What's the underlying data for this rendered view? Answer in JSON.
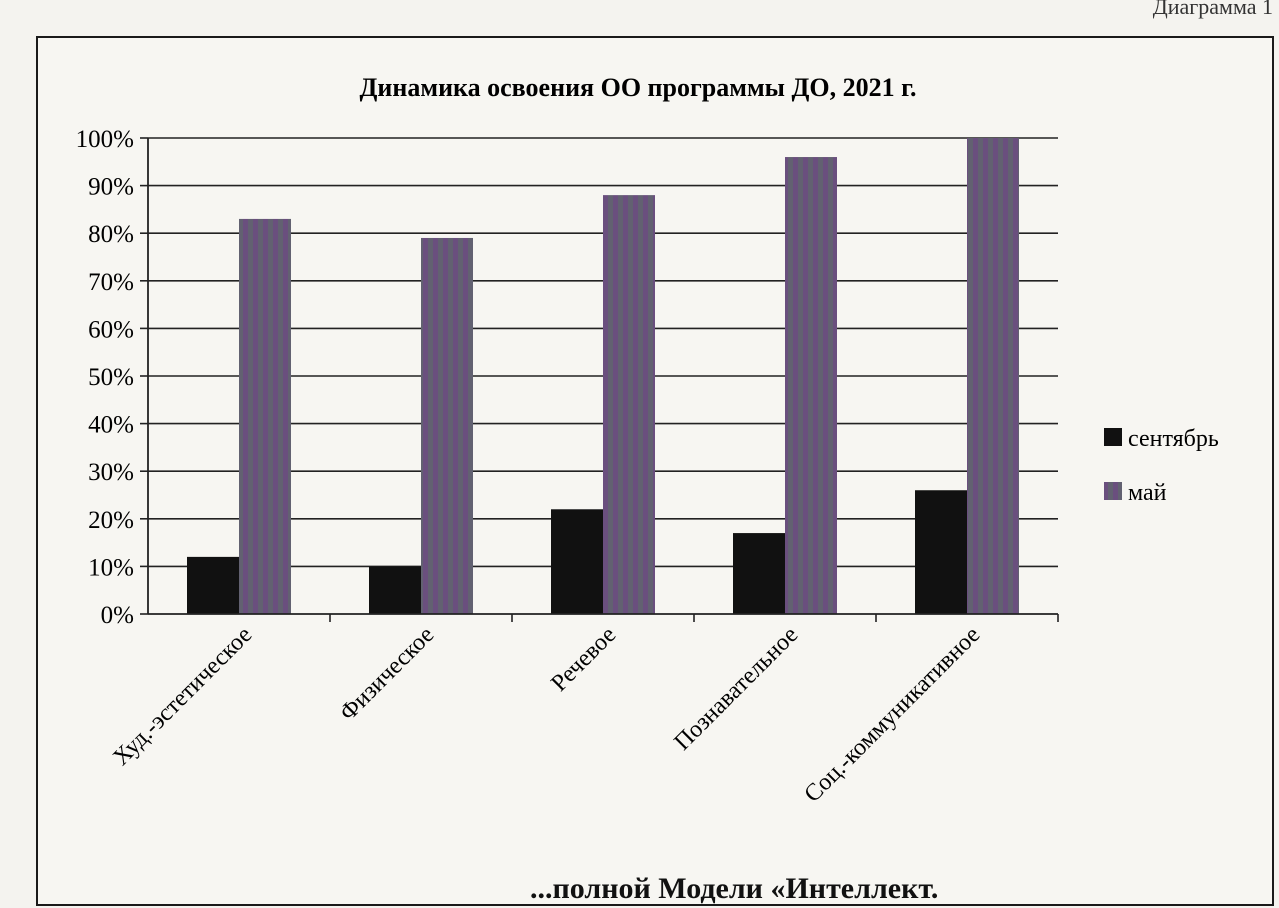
{
  "page": {
    "corner_text": "Диаграмма 1",
    "footer_text": "...полной Модели «Интеллект."
  },
  "chart_data": {
    "type": "bar",
    "title": "Динамика освоения ОО программы ДО, 2021 г.",
    "categories": [
      "Худ.-эстетическое",
      "Физическое",
      "Речевое",
      "Познавательное",
      "Соц.-коммуникативное"
    ],
    "series": [
      {
        "name": "сентябрь",
        "values": [
          12,
          10,
          22,
          17,
          26
        ]
      },
      {
        "name": "май",
        "values": [
          83,
          79,
          88,
          96,
          100
        ]
      }
    ],
    "ylim": [
      0,
      100
    ],
    "yticks": [
      "0%",
      "10%",
      "20%",
      "30%",
      "40%",
      "50%",
      "60%",
      "70%",
      "80%",
      "90%",
      "100%"
    ],
    "grid": true,
    "legend_position": "right",
    "colors": {
      "сентябрь": "#111111",
      "май": "#6a4f7e"
    }
  }
}
